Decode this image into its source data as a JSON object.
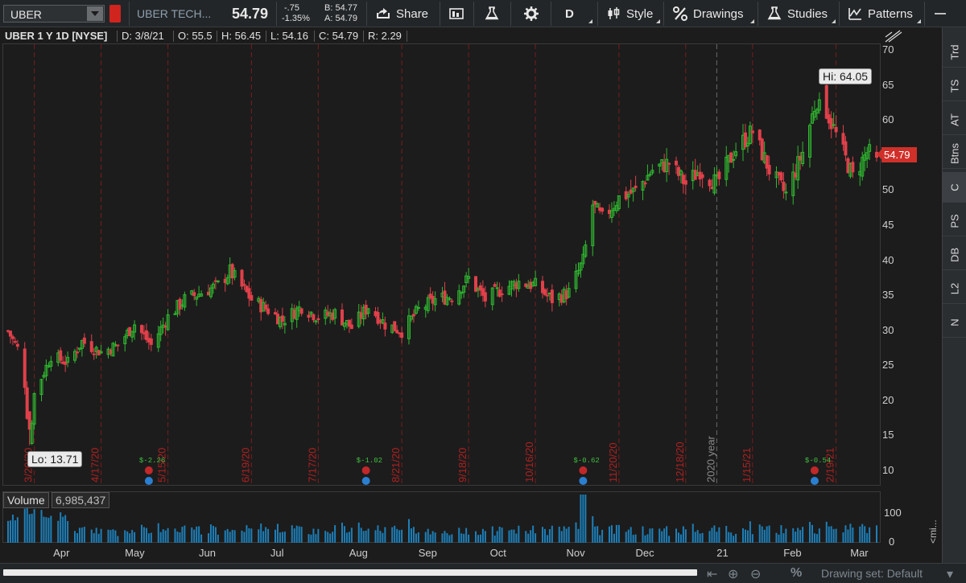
{
  "toolbar": {
    "symbol": "UBER",
    "company": "UBER TECH...",
    "last_price": "54.79",
    "change_abs": "-.75",
    "change_pct": "-1.35%",
    "bid": "B: 54.77",
    "ask": "A: 54.79",
    "share_label": "Share",
    "aggregation": "D",
    "style_label": "Style",
    "drawings_label": "Drawings",
    "studies_label": "Studies",
    "patterns_label": "Patterns"
  },
  "header": {
    "title": "UBER 1 Y 1D [NYSE]",
    "date": "D: 3/8/21",
    "open": "O: 55.5",
    "high": "H: 56.45",
    "low": "L: 54.16",
    "close": "C: 54.79",
    "range": "R: 2.29"
  },
  "price_axis": {
    "ticks": [
      "70",
      "65",
      "60",
      "55",
      "50",
      "45",
      "40",
      "35",
      "30",
      "25",
      "20",
      "15",
      "10"
    ],
    "last_tag": "54.79"
  },
  "callouts": {
    "hi": "Hi: 64.05",
    "lo": "Lo: 13.71"
  },
  "period_markers": [
    "3/20/20",
    "4/17/20",
    "5/15/20",
    "6/19/20",
    "7/17/20",
    "8/21/20",
    "9/18/20",
    "10/16/20",
    "11/20/20",
    "12/18/20",
    "2020 year",
    "1/15/21",
    "2/19/21"
  ],
  "earnings": [
    "$-2.26",
    "$-1.02",
    "$-0.62",
    "$-0.54"
  ],
  "volume": {
    "label": "Volume",
    "value": "6,985,437",
    "axis_top": "100",
    "axis_bottom": "0",
    "side_label": "<mi..."
  },
  "x_axis": [
    "Apr",
    "May",
    "Jun",
    "Jul",
    "Aug",
    "Sep",
    "Oct",
    "Nov",
    "Dec",
    "21",
    "Feb",
    "Mar"
  ],
  "side_tabs": [
    "Trd",
    "TS",
    "AT",
    "Btns",
    "C",
    "PS",
    "DB",
    "L2",
    "N"
  ],
  "bottom": {
    "drawing_set": "Drawing set: Default"
  },
  "colors": {
    "up": "#2fb82f",
    "down": "#e0404a",
    "marker": "#b02020",
    "accent": "#d0302a",
    "volume": "#1e7fb8"
  },
  "chart_data": {
    "type": "candlestick",
    "title": "UBER 1 Y 1D [NYSE]",
    "ylim": [
      8,
      71
    ],
    "xlabels": [
      "Apr",
      "May",
      "Jun",
      "Jul",
      "Aug",
      "Sep",
      "Oct",
      "Nov",
      "Dec",
      "21",
      "Feb",
      "Mar"
    ],
    "close_series": [
      [
        "2020-03-09",
        30.0
      ],
      [
        "2020-03-13",
        27.5
      ],
      [
        "2020-03-16",
        22.5
      ],
      [
        "2020-03-18",
        13.71
      ],
      [
        "2020-03-20",
        21.0
      ],
      [
        "2020-03-27",
        26.5
      ],
      [
        "2020-04-03",
        25.5
      ],
      [
        "2020-04-09",
        28.5
      ],
      [
        "2020-04-17",
        27.0
      ],
      [
        "2020-04-24",
        28.0
      ],
      [
        "2020-05-01",
        31.0
      ],
      [
        "2020-05-08",
        28.0
      ],
      [
        "2020-05-15",
        32.0
      ],
      [
        "2020-05-22",
        34.5
      ],
      [
        "2020-05-29",
        35.5
      ],
      [
        "2020-06-05",
        36.5
      ],
      [
        "2020-06-10",
        38.5
      ],
      [
        "2020-06-19",
        34.5
      ],
      [
        "2020-06-26",
        33.0
      ],
      [
        "2020-07-02",
        31.5
      ],
      [
        "2020-07-10",
        33.5
      ],
      [
        "2020-07-17",
        32.0
      ],
      [
        "2020-07-24",
        32.5
      ],
      [
        "2020-07-31",
        30.5
      ],
      [
        "2020-08-07",
        33.5
      ],
      [
        "2020-08-14",
        31.0
      ],
      [
        "2020-08-21",
        30.0
      ],
      [
        "2020-08-28",
        33.0
      ],
      [
        "2020-09-04",
        34.5
      ],
      [
        "2020-09-11",
        35.0
      ],
      [
        "2020-09-18",
        37.5
      ],
      [
        "2020-09-25",
        34.5
      ],
      [
        "2020-10-02",
        36.0
      ],
      [
        "2020-10-09",
        37.0
      ],
      [
        "2020-10-16",
        36.5
      ],
      [
        "2020-10-23",
        34.5
      ],
      [
        "2020-10-30",
        35.5
      ],
      [
        "2020-11-05",
        40.0
      ],
      [
        "2020-11-09",
        48.0
      ],
      [
        "2020-11-13",
        46.0
      ],
      [
        "2020-11-20",
        49.0
      ],
      [
        "2020-11-27",
        50.0
      ],
      [
        "2020-12-04",
        53.0
      ],
      [
        "2020-12-11",
        54.0
      ],
      [
        "2020-12-18",
        51.0
      ],
      [
        "2020-12-24",
        53.0
      ],
      [
        "2020-12-31",
        51.0
      ],
      [
        "2021-01-08",
        56.0
      ],
      [
        "2021-01-15",
        58.5
      ],
      [
        "2021-01-22",
        53.0
      ],
      [
        "2021-01-29",
        49.5
      ],
      [
        "2021-02-05",
        55.5
      ],
      [
        "2021-02-10",
        62.0
      ],
      [
        "2021-02-12",
        64.05
      ],
      [
        "2021-02-19",
        58.0
      ],
      [
        "2021-02-26",
        52.0
      ],
      [
        "2021-03-04",
        55.5
      ],
      [
        "2021-03-08",
        54.79
      ]
    ],
    "high": 64.05,
    "low": 13.71,
    "last": 54.79
  }
}
